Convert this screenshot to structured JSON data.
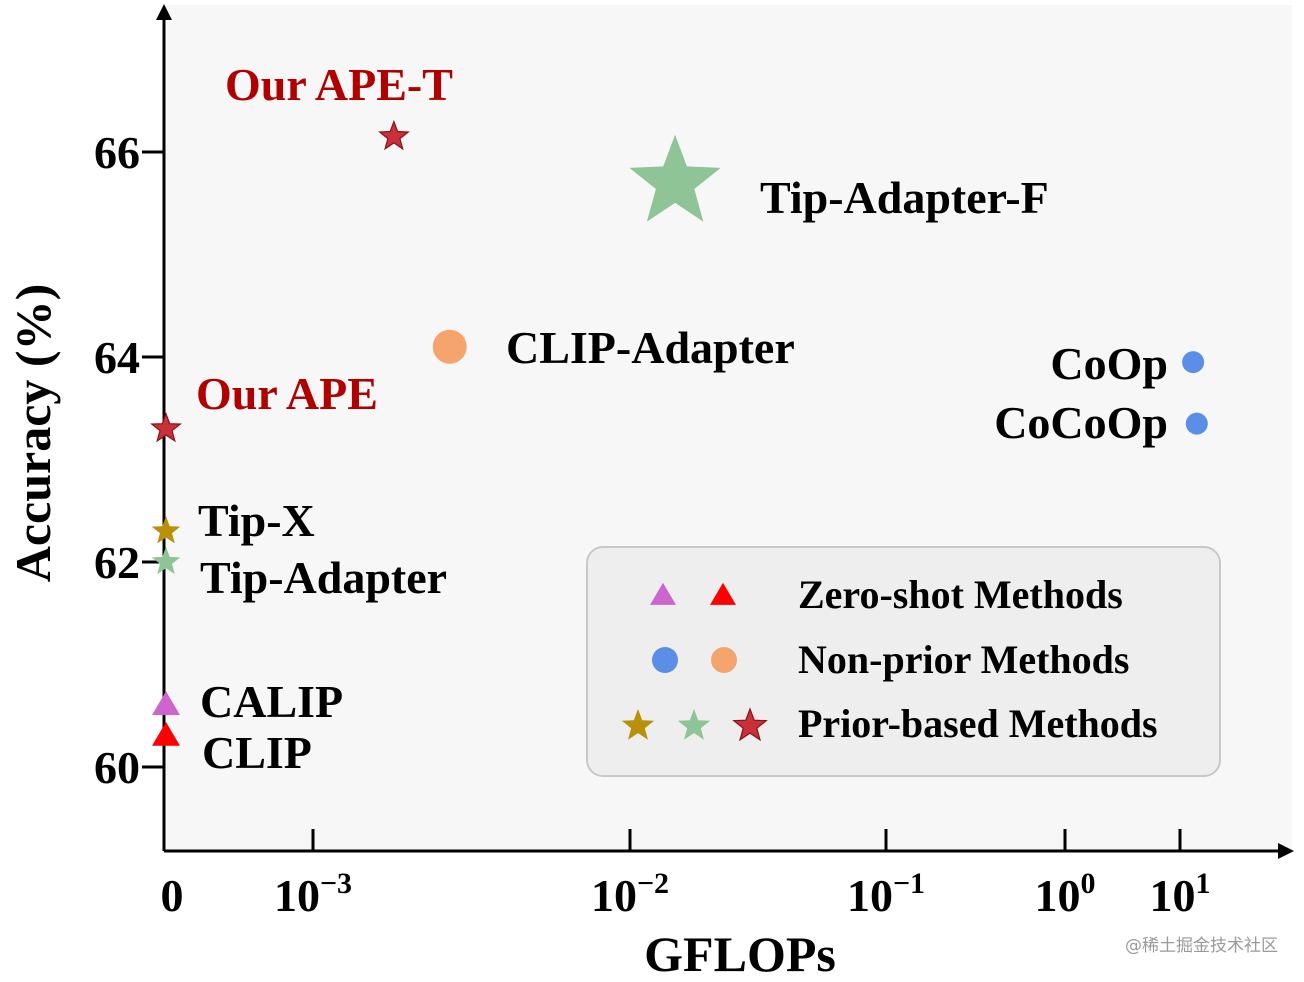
{
  "chart_data": {
    "type": "scatter",
    "xlabel": "GFLOPs",
    "ylabel": "Accuracy (%)",
    "xscale": "log (with 0 at origin)",
    "ylim": [
      59.2,
      67.5
    ],
    "y_ticks": [
      60,
      62,
      64,
      66
    ],
    "x_ticks": [
      {
        "value": 0,
        "base": "0",
        "exp": ""
      },
      {
        "value": 0.001,
        "base": "10",
        "exp": "−3"
      },
      {
        "value": 0.01,
        "base": "10",
        "exp": "−2"
      },
      {
        "value": 0.1,
        "base": "10",
        "exp": "−1"
      },
      {
        "value": 1,
        "base": "10",
        "exp": "0"
      },
      {
        "value": 10,
        "base": "10",
        "exp": "1"
      }
    ],
    "points": [
      {
        "name": "Our APE-T",
        "gflops": 0.0018,
        "accuracy": 66.15,
        "marker": "star",
        "color": "#c8303a",
        "size": "small",
        "ours": true
      },
      {
        "name": "Tip-Adapter-F",
        "gflops": 0.015,
        "accuracy": 65.7,
        "marker": "star",
        "color": "#8fc497",
        "size": "large",
        "ours": false
      },
      {
        "name": "CLIP-Adapter",
        "gflops": 0.0027,
        "accuracy": 64.1,
        "marker": "circle",
        "color": "#f4a46c",
        "size": "medium",
        "ours": false
      },
      {
        "name": "CoOp",
        "gflops": 13,
        "accuracy": 63.95,
        "marker": "circle",
        "color": "#5b8ee6",
        "size": "small",
        "ours": false
      },
      {
        "name": "CoCoOp",
        "gflops": 14,
        "accuracy": 63.35,
        "marker": "circle",
        "color": "#5b8ee6",
        "size": "small",
        "ours": false
      },
      {
        "name": "Our APE",
        "gflops": 0,
        "accuracy": 63.3,
        "marker": "star",
        "color": "#c8303a",
        "size": "small",
        "ours": true
      },
      {
        "name": "Tip-X",
        "gflops": 0,
        "accuracy": 62.3,
        "marker": "star",
        "color": "#b8900a",
        "size": "small",
        "ours": false
      },
      {
        "name": "Tip-Adapter",
        "gflops": 0,
        "accuracy": 62.0,
        "marker": "star",
        "color": "#8fc497",
        "size": "small",
        "ours": false
      },
      {
        "name": "CALIP",
        "gflops": 0,
        "accuracy": 60.6,
        "marker": "triangle",
        "color": "#cc66cc",
        "size": "small",
        "ours": false
      },
      {
        "name": "CLIP",
        "gflops": 0,
        "accuracy": 60.3,
        "marker": "triangle",
        "color": "#ff0000",
        "size": "small",
        "ours": false
      }
    ],
    "legend": {
      "placement": "bottom-right",
      "entries": [
        {
          "label": "Zero-shot Methods",
          "markers": [
            {
              "shape": "triangle",
              "color": "#cc66cc"
            },
            {
              "shape": "triangle",
              "color": "#ff0000"
            }
          ]
        },
        {
          "label": "Non-prior Methods",
          "markers": [
            {
              "shape": "circle",
              "color": "#5b8ee6"
            },
            {
              "shape": "circle",
              "color": "#f4a46c"
            }
          ]
        },
        {
          "label": "Prior-based Methods",
          "markers": [
            {
              "shape": "star",
              "color": "#b8900a"
            },
            {
              "shape": "star",
              "color": "#8fc497"
            },
            {
              "shape": "star",
              "color": "#c8303a"
            }
          ]
        }
      ]
    }
  },
  "watermark": "@稀土掘金技术社区"
}
